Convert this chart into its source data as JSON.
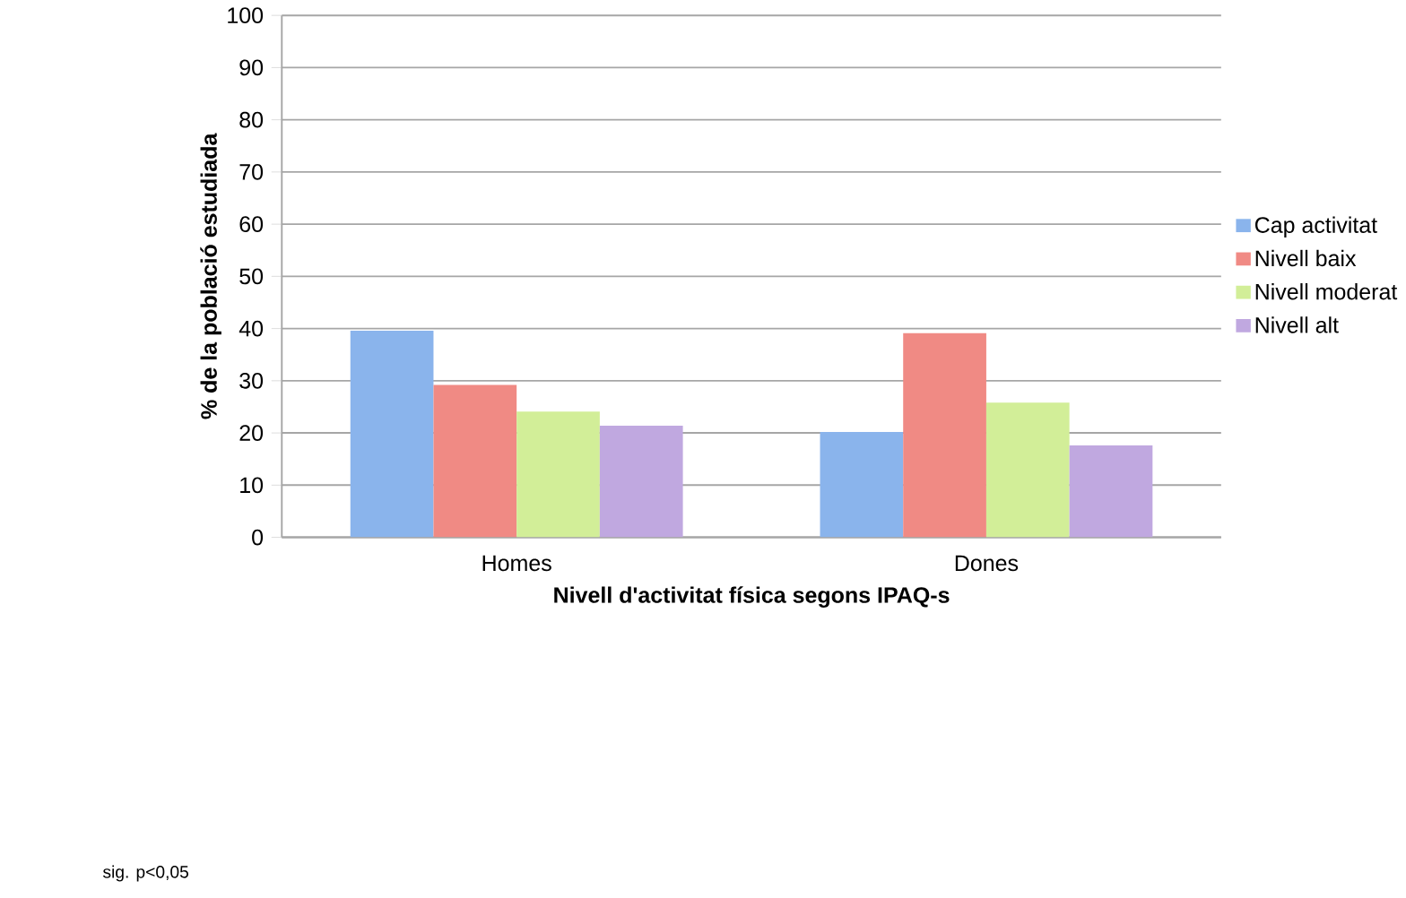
{
  "chart_data": {
    "type": "bar",
    "xlabel": "Nivell d'activitat física segons IPAQ-s",
    "ylabel": "% de la població estudiada",
    "categories": [
      "Homes",
      "Dones"
    ],
    "series": [
      {
        "name": "Cap activitat",
        "color": "#8ab4ec",
        "values": [
          39.6,
          20.2
        ]
      },
      {
        "name": "Nivell baix",
        "color": "#f08a84",
        "values": [
          29.2,
          39.1
        ]
      },
      {
        "name": "Nivell moderat",
        "color": "#d2ee98",
        "values": [
          24.1,
          25.8
        ]
      },
      {
        "name": "Nivell alt",
        "color": "#c0a8e0",
        "values": [
          21.4,
          17.6
        ]
      }
    ],
    "ylim": [
      0,
      100
    ],
    "yticks": [
      0,
      10,
      20,
      30,
      40,
      50,
      60,
      70,
      80,
      90,
      100
    ],
    "grid": "y",
    "legend": "right",
    "annotations": [
      "sig. p<0,05"
    ]
  }
}
